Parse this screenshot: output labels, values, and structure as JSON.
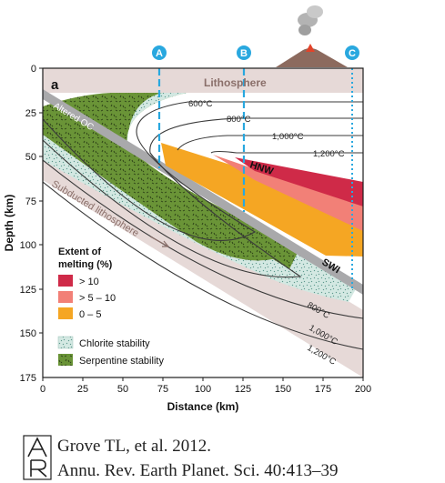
{
  "panel_label": "a",
  "profiles": [
    {
      "id": "A",
      "x_km": 66
    },
    {
      "id": "B",
      "x_km": 113
    },
    {
      "id": "C",
      "x_km": 193
    }
  ],
  "layers": {
    "lithosphere": "Lithosphere",
    "altered_oc": "Altered OC",
    "subducted_lithosphere": "Subducted lithosphere",
    "hnw": "HNW",
    "swi": "SWI"
  },
  "isotherms": [
    "600°C",
    "800°C",
    "1,000°C",
    "1,200°C",
    "800°C",
    "1,000°C",
    "1,200°C"
  ],
  "x_axis": {
    "label": "Distance (km)",
    "ticks": [
      "0",
      "25",
      "50",
      "75",
      "100",
      "125",
      "150",
      "175",
      "200"
    ],
    "range": [
      0,
      200
    ]
  },
  "y_axis": {
    "label": "Depth (km)",
    "ticks": [
      "0",
      "25",
      "50",
      "75",
      "100",
      "125",
      "150",
      "175"
    ],
    "range": [
      0,
      175
    ]
  },
  "legend": {
    "title_line1": "Extent of",
    "title_line2": "melting (%)",
    "items": [
      {
        "label": "> 10",
        "color": "#cf2a48"
      },
      {
        "label": "> 5 – 10",
        "color": "#f28077"
      },
      {
        "label": "0 – 5",
        "color": "#f5a623"
      }
    ],
    "stability": [
      {
        "label": "Chlorite stability",
        "icon": "chlorite-pattern"
      },
      {
        "label": "Serpentine stability",
        "icon": "serpentine-pattern"
      }
    ]
  },
  "colors": {
    "lithosphere": "#e6d9d7",
    "slab": "#a9a9ab",
    "serpentine": "#6a9437",
    "chlorite": "#cfe5df",
    "profile_line": "#29a8df",
    "isotherm": "#3a3a3a"
  },
  "citation": {
    "authors": "Grove TL, et al. 2012.",
    "journal": "Annu. Rev. Earth Planet. Sci. 40:413–39"
  }
}
